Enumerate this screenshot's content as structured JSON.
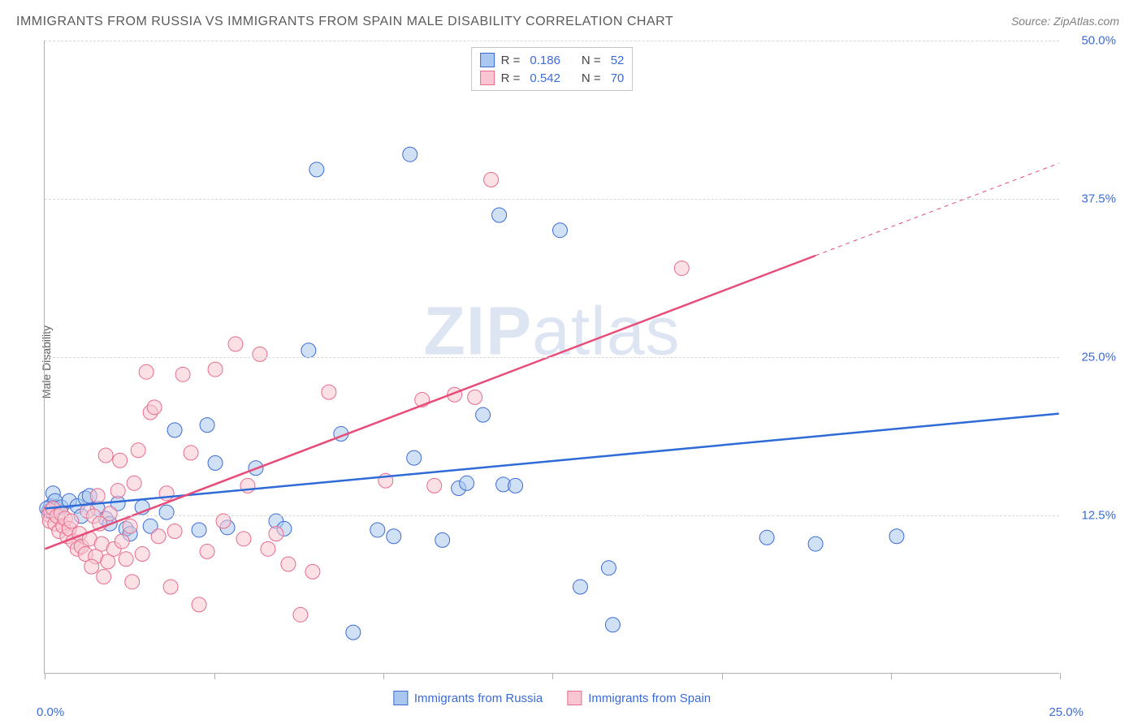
{
  "title": "IMMIGRANTS FROM RUSSIA VS IMMIGRANTS FROM SPAIN MALE DISABILITY CORRELATION CHART",
  "source": "Source: ZipAtlas.com",
  "ylabel": "Male Disability",
  "watermark": {
    "bold": "ZIP",
    "light": "atlas"
  },
  "chart": {
    "type": "scatter",
    "background_color": "#ffffff",
    "grid_color": "#d8d8d8",
    "axis_color": "#b0b0b0",
    "label_color": "#3b6bd6",
    "title_color": "#5a5a5a",
    "xlim": [
      0,
      25
    ],
    "ylim": [
      0,
      50
    ],
    "xtick_positions": [
      0,
      4.17,
      8.33,
      12.5,
      16.67,
      20.83,
      25
    ],
    "ytick_positions": [
      12.5,
      25,
      37.5,
      50
    ],
    "ytick_labels": [
      "12.5%",
      "25.0%",
      "37.5%",
      "50.0%"
    ],
    "xlabel_min": "0.0%",
    "xlabel_max": "25.0%",
    "series": [
      {
        "name": "Immigrants from Russia",
        "fill": "#aac8ef",
        "stroke": "#3b6bd6",
        "fill_opacity": 0.55,
        "marker_radius": 9,
        "regression": {
          "x1": 0,
          "y1": 13.0,
          "x2": 25,
          "y2": 20.5,
          "color": "#2e6bd6",
          "width": 2.5
        },
        "stats": {
          "R": "0.186",
          "N": "52"
        },
        "points": [
          [
            0.1,
            12.8
          ],
          [
            0.15,
            13.2
          ],
          [
            0.2,
            12.9
          ],
          [
            0.2,
            14.2
          ],
          [
            0.3,
            13.0
          ],
          [
            0.25,
            13.6
          ],
          [
            0.4,
            13.1
          ],
          [
            0.6,
            13.6
          ],
          [
            0.8,
            13.2
          ],
          [
            0.9,
            12.4
          ],
          [
            1.0,
            13.8
          ],
          [
            1.1,
            14.0
          ],
          [
            1.3,
            13.0
          ],
          [
            1.5,
            12.2
          ],
          [
            1.6,
            11.8
          ],
          [
            1.8,
            13.4
          ],
          [
            2.0,
            11.4
          ],
          [
            2.1,
            11.0
          ],
          [
            2.4,
            13.1
          ],
          [
            2.6,
            11.6
          ],
          [
            3.0,
            12.7
          ],
          [
            3.2,
            19.2
          ],
          [
            3.8,
            11.3
          ],
          [
            4.0,
            19.6
          ],
          [
            4.2,
            16.6
          ],
          [
            4.5,
            11.5
          ],
          [
            5.2,
            16.2
          ],
          [
            5.7,
            12.0
          ],
          [
            5.9,
            11.4
          ],
          [
            6.5,
            25.5
          ],
          [
            6.7,
            39.8
          ],
          [
            7.3,
            18.9
          ],
          [
            7.6,
            3.2
          ],
          [
            8.2,
            11.3
          ],
          [
            8.6,
            10.8
          ],
          [
            9.0,
            41.0
          ],
          [
            9.1,
            17.0
          ],
          [
            9.8,
            10.5
          ],
          [
            10.2,
            14.6
          ],
          [
            10.4,
            15.0
          ],
          [
            10.8,
            20.4
          ],
          [
            11.2,
            36.2
          ],
          [
            11.3,
            14.9
          ],
          [
            11.6,
            14.8
          ],
          [
            12.7,
            35.0
          ],
          [
            13.2,
            6.8
          ],
          [
            13.9,
            8.3
          ],
          [
            14.0,
            3.8
          ],
          [
            17.8,
            10.7
          ],
          [
            19.0,
            10.2
          ],
          [
            21.0,
            10.8
          ],
          [
            0.05,
            13.0
          ]
        ]
      },
      {
        "name": "Immigrants from Spain",
        "fill": "#f7c6d2",
        "stroke": "#e86b8c",
        "fill_opacity": 0.55,
        "marker_radius": 9,
        "regression_solid": {
          "x1": 0,
          "y1": 9.8,
          "x2": 19,
          "y2": 33.0,
          "color": "#e74d78",
          "width": 2.5
        },
        "regression_dashed": {
          "x1": 19,
          "y1": 33.0,
          "x2": 25,
          "y2": 40.3,
          "color": "#e74d78",
          "width": 1,
          "dash": "5,5"
        },
        "stats": {
          "R": "0.542",
          "N": "70"
        },
        "points": [
          [
            0.1,
            12.5
          ],
          [
            0.12,
            12.0
          ],
          [
            0.15,
            12.8
          ],
          [
            0.2,
            13.0
          ],
          [
            0.25,
            11.8
          ],
          [
            0.3,
            12.4
          ],
          [
            0.35,
            11.2
          ],
          [
            0.4,
            12.6
          ],
          [
            0.45,
            11.6
          ],
          [
            0.5,
            12.2
          ],
          [
            0.55,
            10.8
          ],
          [
            0.6,
            11.4
          ],
          [
            0.65,
            12.0
          ],
          [
            0.7,
            10.4
          ],
          [
            0.8,
            9.8
          ],
          [
            0.85,
            11.0
          ],
          [
            0.9,
            10.0
          ],
          [
            1.0,
            9.4
          ],
          [
            1.05,
            12.8
          ],
          [
            1.1,
            10.6
          ],
          [
            1.2,
            12.4
          ],
          [
            1.25,
            9.2
          ],
          [
            1.3,
            14.0
          ],
          [
            1.35,
            11.8
          ],
          [
            1.4,
            10.2
          ],
          [
            1.5,
            17.2
          ],
          [
            1.55,
            8.8
          ],
          [
            1.6,
            12.6
          ],
          [
            1.7,
            9.8
          ],
          [
            1.8,
            14.4
          ],
          [
            1.85,
            16.8
          ],
          [
            1.9,
            10.4
          ],
          [
            2.0,
            9.0
          ],
          [
            2.1,
            11.6
          ],
          [
            2.2,
            15.0
          ],
          [
            2.3,
            17.6
          ],
          [
            2.4,
            9.4
          ],
          [
            2.5,
            23.8
          ],
          [
            2.6,
            20.6
          ],
          [
            2.7,
            21.0
          ],
          [
            2.8,
            10.8
          ],
          [
            3.0,
            14.2
          ],
          [
            3.2,
            11.2
          ],
          [
            3.4,
            23.6
          ],
          [
            3.6,
            17.4
          ],
          [
            3.8,
            5.4
          ],
          [
            4.0,
            9.6
          ],
          [
            4.2,
            24.0
          ],
          [
            4.4,
            12.0
          ],
          [
            4.7,
            26.0
          ],
          [
            5.0,
            14.8
          ],
          [
            5.3,
            25.2
          ],
          [
            5.5,
            9.8
          ],
          [
            5.7,
            11.0
          ],
          [
            6.0,
            8.6
          ],
          [
            6.3,
            4.6
          ],
          [
            6.6,
            8.0
          ],
          [
            7.0,
            22.2
          ],
          [
            8.4,
            15.2
          ],
          [
            9.3,
            21.6
          ],
          [
            9.6,
            14.8
          ],
          [
            10.1,
            22.0
          ],
          [
            10.6,
            21.8
          ],
          [
            11.0,
            39.0
          ],
          [
            15.7,
            32.0
          ],
          [
            1.15,
            8.4
          ],
          [
            1.45,
            7.6
          ],
          [
            2.15,
            7.2
          ],
          [
            3.1,
            6.8
          ],
          [
            4.9,
            10.6
          ]
        ]
      }
    ]
  },
  "legend_bottom": {
    "items": [
      {
        "label": "Immigrants from Russia",
        "fill": "#aac8ef",
        "stroke": "#3b6bd6"
      },
      {
        "label": "Immigrants from Spain",
        "fill": "#f7c6d2",
        "stroke": "#e86b8c"
      }
    ]
  }
}
